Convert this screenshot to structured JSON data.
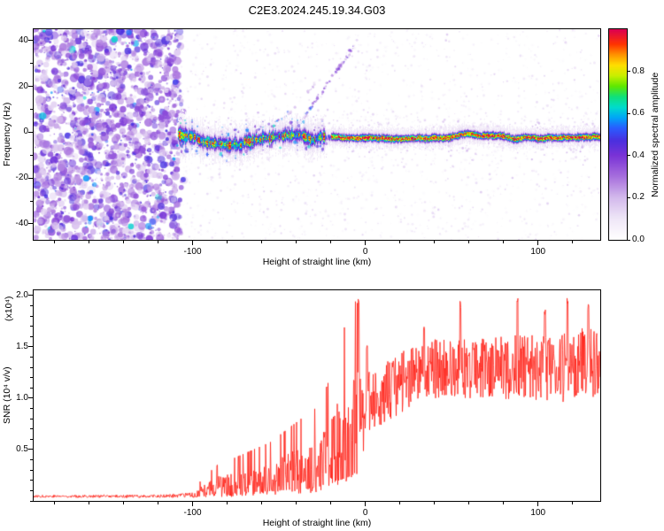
{
  "title": "C2E3.2024.245.19.34.G03",
  "layout_colors": {
    "background": "#ffffff",
    "axis": "#000000"
  },
  "chart_data": [
    {
      "type": "heatmap",
      "panel": "spectrogram",
      "xlabel": "Height of straight line (km)",
      "ylabel": "Frequency (Hz)",
      "xlim": [
        -192,
        136
      ],
      "ylim": [
        -47,
        45
      ],
      "xticks": [
        -100,
        0,
        100
      ],
      "xtick_labels": [
        "-100",
        "0",
        "100"
      ],
      "xminor_step": 20,
      "yticks": [
        40,
        20,
        0,
        -20,
        -40
      ],
      "ytick_labels": [
        "40",
        "20",
        "0",
        "-20",
        "-40"
      ],
      "yminor_step": 10,
      "colorbar": {
        "label": "Normalized spectral amplitude",
        "range": [
          0,
          1
        ],
        "ticks": [
          0,
          0.2,
          0.4,
          0.6,
          0.8
        ],
        "tick_labels": [
          "0.0",
          "0.2",
          "0.4",
          "0.6",
          "0.8"
        ],
        "colormap_stops": [
          [
            0.0,
            "#ffffff"
          ],
          [
            0.1,
            "#efe6f7"
          ],
          [
            0.2,
            "#d3b9ec"
          ],
          [
            0.3,
            "#a76fdd"
          ],
          [
            0.4,
            "#7a33d6"
          ],
          [
            0.47,
            "#4b2fdf"
          ],
          [
            0.53,
            "#2a5cff"
          ],
          [
            0.58,
            "#00a5f7"
          ],
          [
            0.63,
            "#00dccc"
          ],
          [
            0.68,
            "#10e07a"
          ],
          [
            0.73,
            "#5fe800"
          ],
          [
            0.78,
            "#c9ef00"
          ],
          [
            0.83,
            "#ffdf00"
          ],
          [
            0.88,
            "#ff9300"
          ],
          [
            0.93,
            "#ff3400"
          ],
          [
            1.0,
            "#dd0051"
          ]
        ]
      },
      "features": {
        "noise_region": {
          "x_end_km": -107,
          "description": "dense purple speckle noise over all frequencies left of -107 km"
        },
        "signal_band": {
          "center_hz": -2,
          "start_km": -108,
          "tight_from_km": -20,
          "wide_width_hz": 2.6,
          "tight_width_hz": 1.5,
          "peak_amplitude": 0.95
        },
        "diagonal_streak": {
          "from_km_hz": [
            -38,
            4
          ],
          "to_km_hz": [
            -6,
            38
          ]
        }
      }
    },
    {
      "type": "line",
      "panel": "snr",
      "xlabel": "Height of straight line (km)",
      "ylabel": "SNR (10⁴ v/v)",
      "scale_note": "(x10⁴)",
      "xlim": [
        -192,
        136
      ],
      "ylim": [
        0,
        2.05
      ],
      "xticks": [
        -100,
        0,
        100
      ],
      "xtick_labels": [
        "-100",
        "0",
        "100"
      ],
      "xminor_step": 20,
      "yticks": [
        0.5,
        1.0,
        1.5,
        2.0
      ],
      "ytick_labels": [
        "0.5",
        "1.0",
        "1.5",
        "2.0"
      ],
      "yminor_step": 0.1,
      "line_color": "#ff2015",
      "envelope": [
        [
          -192,
          0.045,
          0.012
        ],
        [
          -120,
          0.045,
          0.015
        ],
        [
          -100,
          0.055,
          0.025
        ],
        [
          -92,
          0.1,
          0.07
        ],
        [
          -85,
          0.14,
          0.1
        ],
        [
          -75,
          0.16,
          0.12
        ],
        [
          -65,
          0.19,
          0.14
        ],
        [
          -55,
          0.22,
          0.16
        ],
        [
          -45,
          0.26,
          0.2
        ],
        [
          -35,
          0.3,
          0.24
        ],
        [
          -28,
          0.34,
          0.26
        ],
        [
          -22,
          0.42,
          0.32
        ],
        [
          -16,
          0.55,
          0.42
        ],
        [
          -11,
          0.65,
          0.5
        ],
        [
          -7,
          0.75,
          0.55
        ],
        [
          -3,
          0.8,
          0.5
        ],
        [
          0,
          0.9,
          0.35
        ],
        [
          5,
          1.0,
          0.28
        ],
        [
          12,
          1.05,
          0.3
        ],
        [
          20,
          1.15,
          0.3
        ],
        [
          35,
          1.28,
          0.28
        ],
        [
          50,
          1.3,
          0.3
        ],
        [
          70,
          1.28,
          0.3
        ],
        [
          90,
          1.3,
          0.32
        ],
        [
          110,
          1.28,
          0.34
        ],
        [
          125,
          1.33,
          0.35
        ],
        [
          136,
          1.35,
          0.35
        ]
      ],
      "spikes": [
        [
          -4,
          2.0
        ],
        [
          1,
          1.55
        ],
        [
          34,
          1.72
        ],
        [
          55,
          1.95
        ],
        [
          88,
          2.0
        ],
        [
          104,
          1.88
        ],
        [
          117,
          2.0
        ],
        [
          129,
          1.93
        ]
      ]
    }
  ]
}
